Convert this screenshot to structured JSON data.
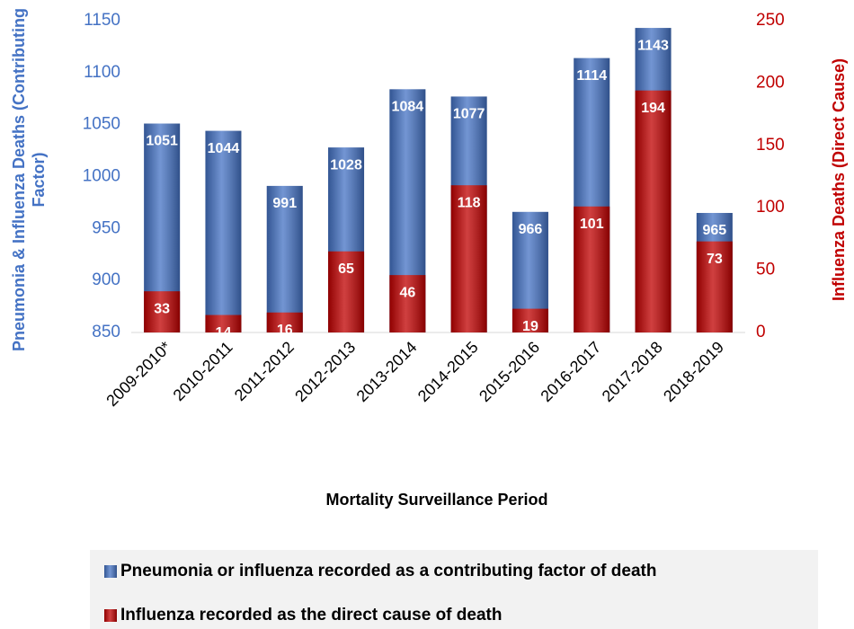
{
  "chart_data": {
    "type": "bar",
    "categories": [
      "2009-2010*",
      "2010-2011",
      "2011-2012",
      "2012-2013",
      "2013-2014",
      "2014-2015",
      "2015-2016",
      "2016-2017",
      "2017-2018",
      "2018-2019"
    ],
    "series": [
      {
        "name": "Pneumonia or influenza recorded as a contributing factor of death",
        "color": "#4472c4",
        "values": [
          1051,
          1044,
          991,
          1028,
          1084,
          1077,
          966,
          1114,
          1143,
          965
        ]
      },
      {
        "name": "Influenza recorded as the direct cause of death",
        "color": "#c00000",
        "axis": "y2",
        "values": [
          33,
          14,
          16,
          65,
          46,
          118,
          19,
          101,
          194,
          73
        ]
      }
    ],
    "xlabel": "Mortality Surveillance Period",
    "ylabel": [
      "Pneumonia & Influenza Deaths (Contributing",
      "Factor)"
    ],
    "y2label": "Influenza Deaths (Direct Cause)",
    "ylim": [
      850,
      1150
    ],
    "yticks": [
      850,
      900,
      950,
      1000,
      1050,
      1100,
      1150
    ],
    "y2lim": [
      0,
      250
    ],
    "y2ticks": [
      0,
      50,
      100,
      150,
      200,
      250
    ],
    "ytick_color": "#4472c4",
    "y2tick_color": "#c00000"
  }
}
